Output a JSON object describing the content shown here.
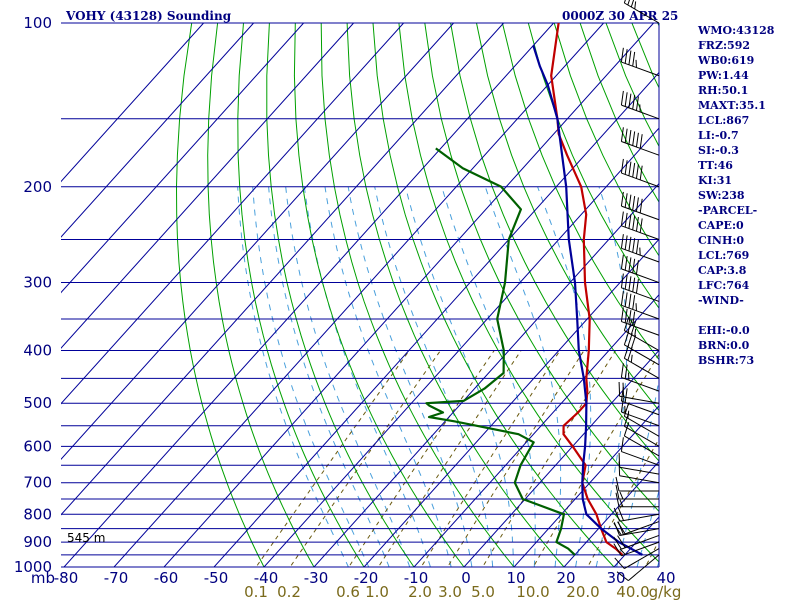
{
  "header": {
    "title": "VOHY (43128) Sounding",
    "timestamp": "0000Z 30 APR 25"
  },
  "side_panel": [
    "WMO:43128",
    "FRZ:592",
    "WB0:619",
    "PW:1.44",
    "RH:50.1",
    "MAXT:35.1",
    "LCL:867",
    "LI:-0.7",
    "SI:-0.3",
    "TT:46",
    "KI:31",
    "SW:238",
    "-PARCEL-",
    "CAPE:0",
    "CINH:0",
    "LCL:769",
    "CAP:3.8",
    "LFC:764",
    "-WIND-",
    "",
    "EHI:-0.0",
    "BRN:0.0",
    "BSHR:73"
  ],
  "chart_data": {
    "type": "line",
    "subtype": "skew-t log-p sounding",
    "pressure_unit": "mb",
    "pressure_axis": {
      "scale": "log",
      "range": [
        1000,
        100
      ],
      "tick_labels": [
        "100",
        "200",
        "300",
        "400",
        "500",
        "600",
        "700",
        "800",
        "900",
        "1000"
      ]
    },
    "temperature_axis": {
      "unit": "C",
      "range": [
        -80,
        40
      ],
      "tick_labels": [
        "mb",
        "-80",
        "-70",
        "-60",
        "-50",
        "-40",
        "-30",
        "-20",
        "-10",
        "0",
        "10",
        "20",
        "30",
        "40"
      ]
    },
    "mixing_ratio_labels": [
      "0.1",
      "0.2",
      "0.6",
      "1.0",
      "2.0",
      "3.0",
      "5.0",
      "10.0",
      "20.0",
      "40.0",
      "g/kg"
    ],
    "mixing_ratio_values": [
      0.1,
      0.2,
      0.6,
      1.0,
      2.0,
      3.0,
      5.0,
      10.0,
      20.0,
      40.0
    ],
    "surface_elevation_label": "545 m",
    "series": [
      {
        "color": "#c00000",
        "points": [
          [
            950,
            29.5
          ],
          [
            925,
            27
          ],
          [
            900,
            24
          ],
          [
            850,
            20.5
          ],
          [
            800,
            17
          ],
          [
            750,
            12.5
          ],
          [
            700,
            8.5
          ],
          [
            650,
            6
          ],
          [
            600,
            0
          ],
          [
            570,
            -4
          ],
          [
            550,
            -5.5
          ],
          [
            520,
            -5
          ],
          [
            500,
            -5
          ],
          [
            475,
            -7
          ],
          [
            450,
            -9.5
          ],
          [
            400,
            -14
          ],
          [
            350,
            -19.5
          ],
          [
            300,
            -27
          ],
          [
            250,
            -35
          ],
          [
            225,
            -39
          ],
          [
            200,
            -45
          ],
          [
            175,
            -53.5
          ],
          [
            160,
            -59
          ],
          [
            150,
            -62
          ],
          [
            125,
            -71
          ],
          [
            100,
            -79
          ]
        ]
      },
      {
        "color": "#006000",
        "points": [
          [
            950,
            20
          ],
          [
            925,
            17.5
          ],
          [
            900,
            14
          ],
          [
            850,
            12.5
          ],
          [
            800,
            10.5
          ],
          [
            750,
            -0.5
          ],
          [
            700,
            -5
          ],
          [
            650,
            -7
          ],
          [
            610,
            -8
          ],
          [
            590,
            -8.5
          ],
          [
            570,
            -13
          ],
          [
            540,
            -28
          ],
          [
            530,
            -34
          ],
          [
            520,
            -32
          ],
          [
            505,
            -36
          ],
          [
            500,
            -37
          ],
          [
            495,
            -30
          ],
          [
            470,
            -28
          ],
          [
            440,
            -27
          ],
          [
            400,
            -31
          ],
          [
            350,
            -38
          ],
          [
            300,
            -43
          ],
          [
            250,
            -50
          ],
          [
            220,
            -53
          ],
          [
            200,
            -61
          ],
          [
            185,
            -72
          ],
          [
            170,
            -81
          ]
        ]
      },
      {
        "color": "#000099",
        "points": [
          [
            950,
            33.5
          ],
          [
            900,
            26.5
          ],
          [
            850,
            20.5
          ],
          [
            800,
            15
          ],
          [
            750,
            11.5
          ],
          [
            700,
            8.5
          ],
          [
            650,
            5.5
          ],
          [
            600,
            2.5
          ],
          [
            550,
            -1
          ],
          [
            500,
            -5
          ],
          [
            450,
            -10
          ],
          [
            400,
            -16
          ],
          [
            350,
            -22
          ],
          [
            300,
            -29
          ],
          [
            250,
            -38
          ],
          [
            200,
            -48
          ],
          [
            150,
            -62
          ],
          [
            130,
            -70
          ],
          [
            120,
            -75
          ],
          [
            110,
            -80
          ]
        ]
      }
    ],
    "wind_barbs": [
      [
        950,
        230,
        10
      ],
      [
        925,
        240,
        10
      ],
      [
        900,
        250,
        15
      ],
      [
        875,
        250,
        20
      ],
      [
        850,
        260,
        20
      ],
      [
        825,
        250,
        20
      ],
      [
        800,
        260,
        20
      ],
      [
        775,
        270,
        15
      ],
      [
        750,
        270,
        15
      ],
      [
        725,
        270,
        10
      ],
      [
        700,
        280,
        10
      ],
      [
        675,
        280,
        10
      ],
      [
        650,
        290,
        10
      ],
      [
        625,
        300,
        10
      ],
      [
        600,
        300,
        10
      ],
      [
        575,
        300,
        15
      ],
      [
        550,
        290,
        15
      ],
      [
        525,
        290,
        20
      ],
      [
        500,
        280,
        20
      ],
      [
        475,
        290,
        25
      ],
      [
        450,
        300,
        25
      ],
      [
        425,
        300,
        30
      ],
      [
        400,
        300,
        35
      ],
      [
        375,
        290,
        40
      ],
      [
        350,
        290,
        45
      ],
      [
        325,
        290,
        50
      ],
      [
        300,
        290,
        50
      ],
      [
        275,
        290,
        55
      ],
      [
        250,
        290,
        60
      ],
      [
        230,
        290,
        65
      ],
      [
        200,
        290,
        70
      ],
      [
        175,
        290,
        65
      ],
      [
        150,
        290,
        55
      ],
      [
        125,
        290,
        45
      ],
      [
        100,
        300,
        35
      ]
    ],
    "colors": {
      "grid": "#000099",
      "dry_adiabats": "#00a000",
      "moist_adiabats": "#4aa0dc",
      "mixing_ratio": "#6a5a10",
      "text": "#000080"
    }
  }
}
